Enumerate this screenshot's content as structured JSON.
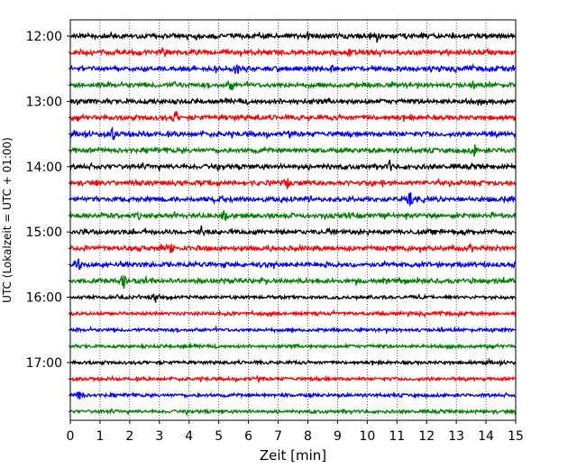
{
  "chart_data": {
    "type": "line",
    "subtype": "helicorder",
    "xlabel": "Zeit  [min]",
    "ylabel": "UTC (Lokalzeit = UTC + 01:00)",
    "xlim": [
      0,
      15
    ],
    "x_ticks": [
      "0",
      "1",
      "2",
      "3",
      "4",
      "5",
      "6",
      "7",
      "8",
      "9",
      "10",
      "11",
      "12",
      "13",
      "14",
      "15"
    ],
    "y_tick_labels": [
      "12:00",
      "13:00",
      "14:00",
      "15:00",
      "16:00",
      "17:00"
    ],
    "grid": "vertical dotted lines at each minute",
    "trace_colors": [
      "#000000",
      "#ff0000",
      "#0000ff",
      "#008000"
    ],
    "trace_rows": [
      {
        "start": "12:00",
        "color": "#000000",
        "events_min": [
          10.35,
          8.0,
          10.1
        ]
      },
      {
        "start": "12:15",
        "color": "#ff0000",
        "events_min": [
          3.15,
          4.1,
          5.75,
          9.4
        ]
      },
      {
        "start": "12:30",
        "color": "#0000ff",
        "events_min": [
          5.6,
          8.8,
          13.0
        ]
      },
      {
        "start": "12:45",
        "color": "#008000",
        "events_min": [
          5.4,
          3.5,
          13.6
        ]
      },
      {
        "start": "13:00",
        "color": "#000000",
        "events_min": []
      },
      {
        "start": "13:15",
        "color": "#ff0000",
        "events_min": [
          3.55,
          6.3
        ]
      },
      {
        "start": "13:30",
        "color": "#0000ff",
        "events_min": [
          1.45,
          9.05,
          14.2
        ]
      },
      {
        "start": "13:45",
        "color": "#008000",
        "events_min": [
          13.6,
          14.6,
          3.2
        ]
      },
      {
        "start": "14:00",
        "color": "#000000",
        "events_min": [
          10.75,
          8.7
        ]
      },
      {
        "start": "14:15",
        "color": "#ff0000",
        "events_min": [
          7.3,
          10.5,
          12.8
        ]
      },
      {
        "start": "14:30",
        "color": "#0000ff",
        "events_min": [
          11.45,
          14.6
        ]
      },
      {
        "start": "14:45",
        "color": "#008000",
        "events_min": [
          5.2,
          8.55,
          2.3,
          14.2
        ]
      },
      {
        "start": "15:00",
        "color": "#000000",
        "events_min": [
          4.4,
          10.05,
          8.7
        ]
      },
      {
        "start": "15:15",
        "color": "#ff0000",
        "events_min": [
          3.4,
          11.4,
          0.5
        ]
      },
      {
        "start": "15:30",
        "color": "#0000ff",
        "events_min": [
          0.25,
          8.6,
          14.95
        ]
      },
      {
        "start": "15:45",
        "color": "#008000",
        "events_min": [
          1.8,
          2.4,
          14.9
        ]
      },
      {
        "start": "16:00",
        "color": "#000000",
        "events_min": [
          2.9
        ]
      },
      {
        "start": "16:15",
        "color": "#ff0000",
        "events_min": []
      },
      {
        "start": "16:30",
        "color": "#0000ff",
        "events_min": []
      },
      {
        "start": "16:45",
        "color": "#008000",
        "events_min": []
      },
      {
        "start": "17:00",
        "color": "#000000",
        "events_min": []
      },
      {
        "start": "17:15",
        "color": "#ff0000",
        "events_min": []
      },
      {
        "start": "17:30",
        "color": "#0000ff",
        "events_min": [
          0.3
        ]
      },
      {
        "start": "17:45",
        "color": "#008000",
        "events_min": []
      }
    ]
  }
}
